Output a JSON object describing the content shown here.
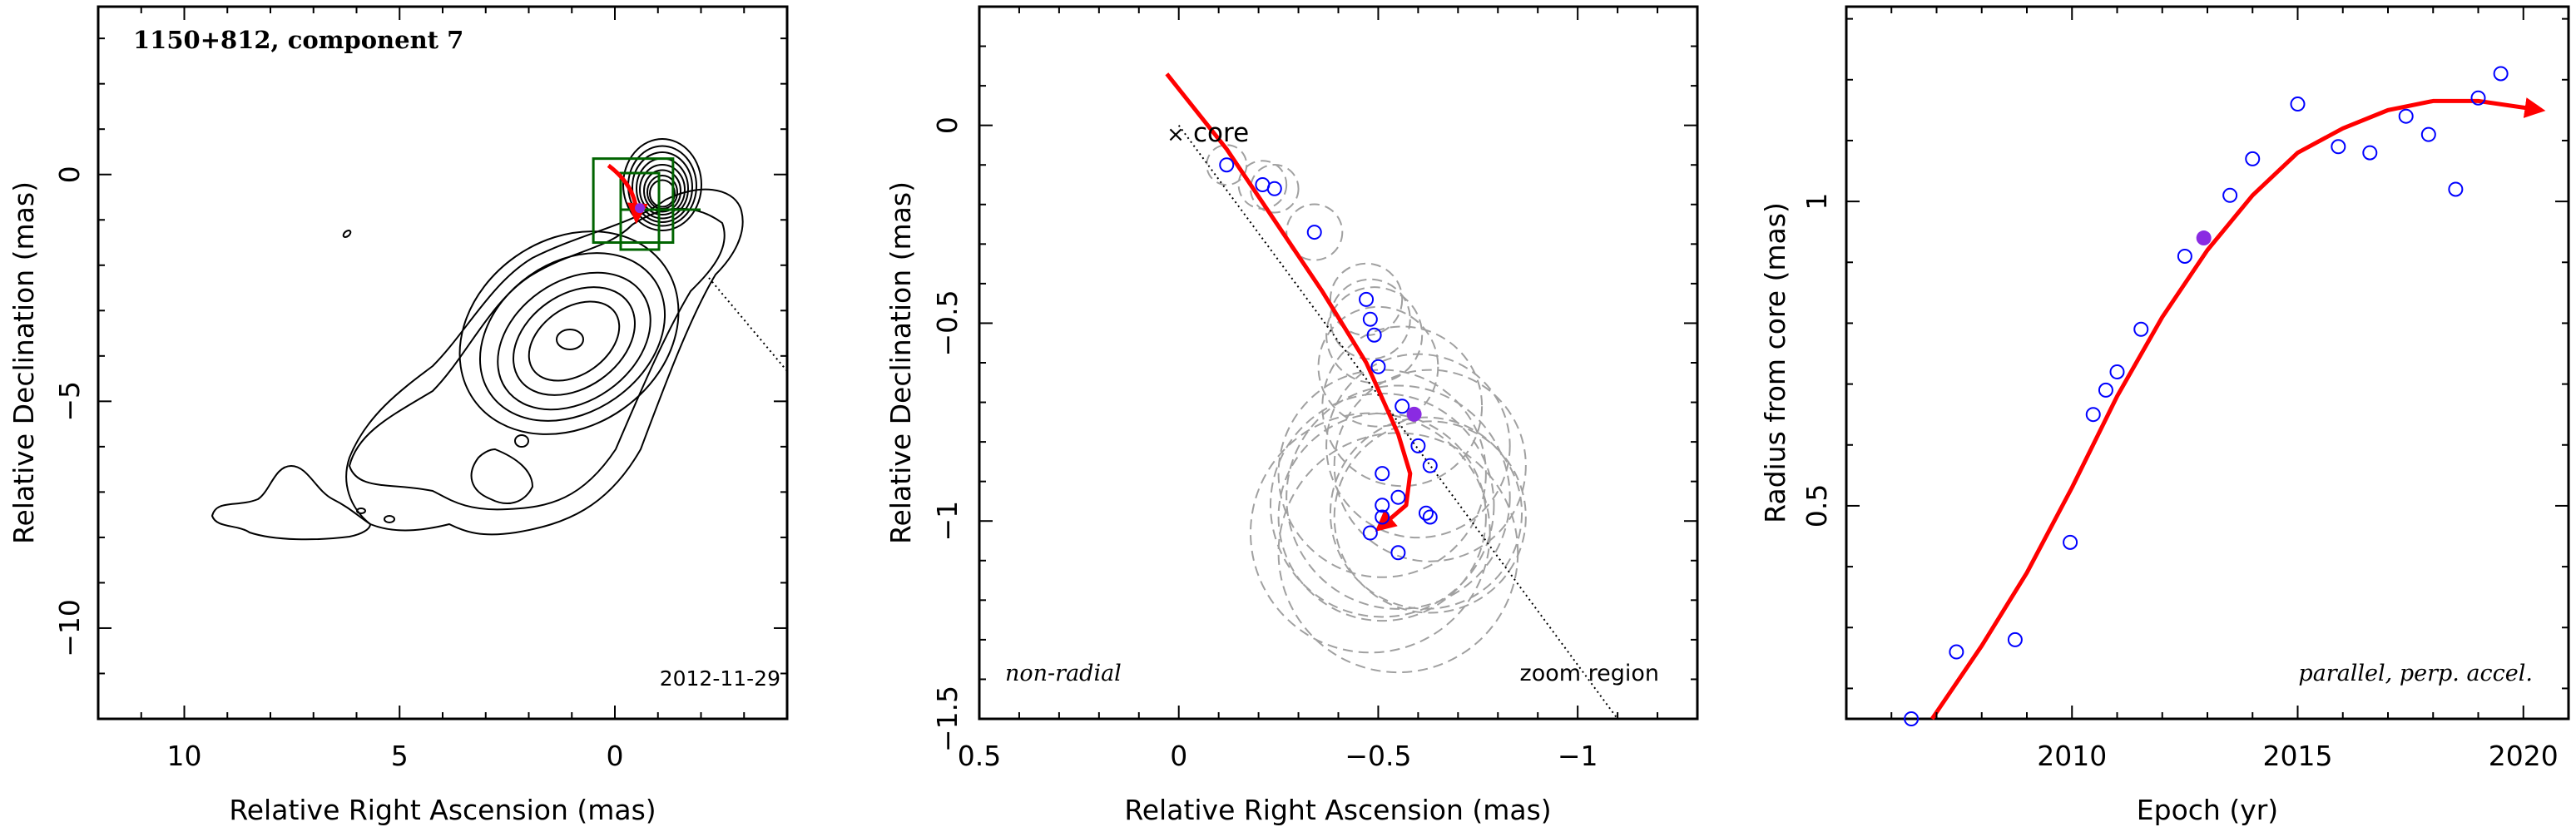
{
  "chart_data": [
    {
      "type": "contour",
      "title": "1150+812, component 7",
      "date": "2012-11-29",
      "xlabel": "Relative Right Ascension (mas)",
      "ylabel": "Relative Declination (mas)",
      "xlim": [
        12,
        -4
      ],
      "ylim": [
        -12,
        3.7
      ],
      "xticks": [
        10,
        5,
        0
      ],
      "yticks": [
        0,
        -5,
        -10
      ],
      "core": [
        0,
        0
      ],
      "component_position": [
        -0.58,
        -0.74
      ],
      "zoom_box": {
        "ra": [
          0.5,
          -1.35
        ],
        "dec": [
          0.35,
          -1.5
        ]
      },
      "colors": {
        "contour": "#000000",
        "path": "#ff0000",
        "box": "#006400",
        "component": "#8a2be2"
      }
    },
    {
      "type": "scatter",
      "xlabel": "Relative Right Ascension (mas)",
      "ylabel": "Relative Declination (mas)",
      "xlim": [
        0.5,
        -1.3
      ],
      "ylim": [
        -1.5,
        0.3
      ],
      "xticks": [
        0.5,
        0,
        -0.5,
        -1
      ],
      "yticks": [
        0,
        -0.5,
        -1,
        -1.5
      ],
      "core_label": "core",
      "annotations": [
        "non-radial",
        "zoom region"
      ],
      "points": [
        {
          "ra": -0.12,
          "dec": -0.1,
          "r": 0.05
        },
        {
          "ra": -0.21,
          "dec": -0.15,
          "r": 0.06
        },
        {
          "ra": -0.24,
          "dec": -0.16,
          "r": 0.06
        },
        {
          "ra": -0.34,
          "dec": -0.27,
          "r": 0.07
        },
        {
          "ra": -0.47,
          "dec": -0.44,
          "r": 0.09
        },
        {
          "ra": -0.48,
          "dec": -0.49,
          "r": 0.1
        },
        {
          "ra": -0.49,
          "dec": -0.53,
          "r": 0.12
        },
        {
          "ra": -0.5,
          "dec": -0.61,
          "r": 0.15
        },
        {
          "ra": -0.56,
          "dec": -0.71,
          "r": 0.2
        },
        {
          "ra": -0.6,
          "dec": -0.81,
          "r": 0.23
        },
        {
          "ra": -0.63,
          "dec": -0.86,
          "r": 0.24
        },
        {
          "ra": -0.51,
          "dec": -0.88,
          "r": 0.26
        },
        {
          "ra": -0.55,
          "dec": -0.94,
          "r": 0.28
        },
        {
          "ra": -0.51,
          "dec": -0.96,
          "r": 0.28
        },
        {
          "ra": -0.62,
          "dec": -0.98,
          "r": 0.24
        },
        {
          "ra": -0.63,
          "dec": -0.99,
          "r": 0.24
        },
        {
          "ra": -0.51,
          "dec": -0.99,
          "r": 0.26
        },
        {
          "ra": -0.48,
          "dec": -1.03,
          "r": 0.3
        },
        {
          "ra": -0.55,
          "dec": -1.08,
          "r": 0.3
        }
      ],
      "highlight_point": {
        "ra": -0.59,
        "dec": -0.73
      },
      "path": {
        "ra": [
          0.03,
          -0.12,
          -0.24,
          -0.36,
          -0.47,
          -0.55,
          -0.58,
          -0.57,
          -0.5
        ],
        "dec": [
          0.13,
          -0.06,
          -0.24,
          -0.42,
          -0.6,
          -0.78,
          -0.88,
          -0.96,
          -1.02
        ]
      },
      "direction_line": {
        "ra": [
          0,
          -1.1
        ],
        "dec": [
          0,
          -1.5
        ]
      },
      "colors": {
        "points": "#0000ff",
        "highlight": "#8a2be2",
        "path": "#ff0000",
        "ellipses": "#a0a0a0"
      }
    },
    {
      "type": "scatter",
      "xlabel": "Epoch (yr)",
      "ylabel": "Radius from core (mas)",
      "xlim": [
        2005,
        2021
      ],
      "ylim": [
        0.15,
        1.32
      ],
      "xticks": [
        2010,
        2015,
        2020
      ],
      "yticks": [
        0.5,
        1
      ],
      "annotation": "parallel, perp. accel.",
      "points": [
        {
          "x": 2006.44,
          "y": 0.15
        },
        {
          "x": 2007.44,
          "y": 0.26
        },
        {
          "x": 2008.74,
          "y": 0.28
        },
        {
          "x": 2009.96,
          "y": 0.44
        },
        {
          "x": 2010.47,
          "y": 0.65
        },
        {
          "x": 2010.75,
          "y": 0.69
        },
        {
          "x": 2011.0,
          "y": 0.72
        },
        {
          "x": 2011.53,
          "y": 0.79
        },
        {
          "x": 2012.5,
          "y": 0.91
        },
        {
          "x": 2013.5,
          "y": 1.01
        },
        {
          "x": 2014.0,
          "y": 1.07
        },
        {
          "x": 2015.0,
          "y": 1.16
        },
        {
          "x": 2015.9,
          "y": 1.09
        },
        {
          "x": 2016.6,
          "y": 1.08
        },
        {
          "x": 2017.4,
          "y": 1.14
        },
        {
          "x": 2017.9,
          "y": 1.11
        },
        {
          "x": 2018.5,
          "y": 1.02
        },
        {
          "x": 2019.0,
          "y": 1.17
        },
        {
          "x": 2019.5,
          "y": 1.21
        }
      ],
      "highlight_point": {
        "x": 2012.92,
        "y": 0.94
      },
      "fit": {
        "x": [
          2006.9,
          2008.0,
          2009.0,
          2010.0,
          2011.0,
          2012.0,
          2013.0,
          2014.0,
          2015.0,
          2016.0,
          2017.0,
          2018.0,
          2019.0,
          2020.4
        ],
        "y": [
          0.15,
          0.27,
          0.39,
          0.53,
          0.68,
          0.81,
          0.92,
          1.01,
          1.08,
          1.12,
          1.15,
          1.165,
          1.165,
          1.15
        ]
      },
      "colors": {
        "points": "#0000ff",
        "highlight": "#8a2be2",
        "fit": "#ff0000"
      }
    }
  ]
}
